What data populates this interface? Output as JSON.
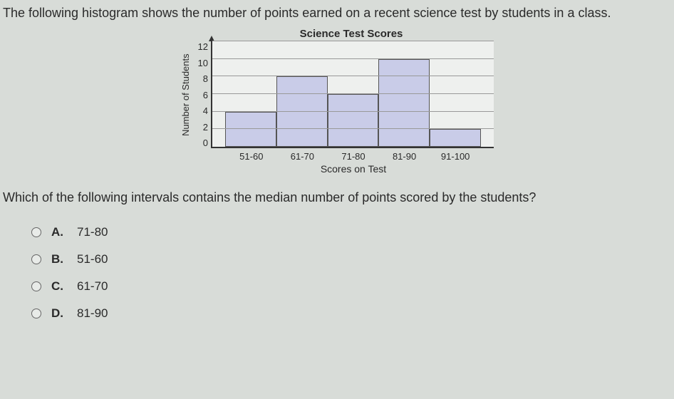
{
  "intro": "The following histogram shows the number of points earned on a recent science test by students in a class.",
  "chart": {
    "type": "histogram",
    "title": "Science Test Scores",
    "ylabel": "Number of Students",
    "xlabel": "Scores on Test",
    "ylim": [
      0,
      12
    ],
    "ytick_step": 2,
    "yticks": [
      "12",
      "10",
      "8",
      "6",
      "4",
      "2",
      "0"
    ],
    "grid_color": "#999999",
    "background_color": "#eef0ee",
    "bar_color": "#c9cce8",
    "bar_border_color": "#555555",
    "categories": [
      "51-60",
      "61-70",
      "71-80",
      "81-90",
      "91-100"
    ],
    "values": [
      4,
      8,
      6,
      10,
      2
    ]
  },
  "question": "Which of the following intervals contains the median number of points scored by the students?",
  "options": [
    {
      "letter": "A.",
      "text": "71-80"
    },
    {
      "letter": "B.",
      "text": "51-60"
    },
    {
      "letter": "C.",
      "text": "61-70"
    },
    {
      "letter": "D.",
      "text": "81-90"
    }
  ]
}
